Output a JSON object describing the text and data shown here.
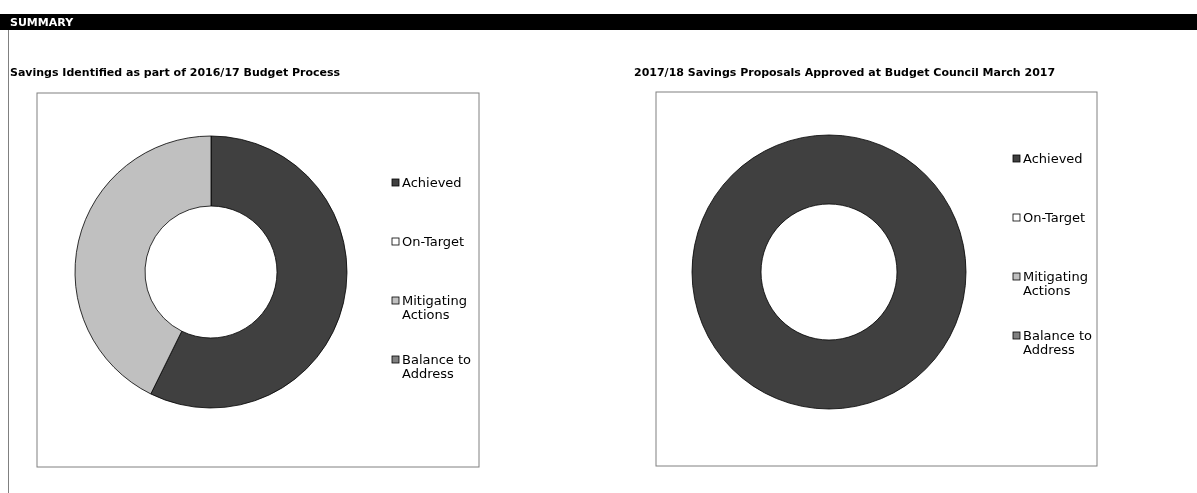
{
  "chart_data": [
    {
      "type": "donut",
      "title": "Savings Identified as part of 2016/17 Budget Process",
      "annotations": [
        "SUMMARY"
      ],
      "categories": [
        "Achieved",
        "On-Target",
        "Mitigating Actions",
        "Balance to Address"
      ],
      "values": [
        57.3,
        0,
        42.7,
        0
      ],
      "colors": [
        "#404040",
        "#ffffff",
        "#c0c0c0",
        "#808080"
      ],
      "legend": "right"
    },
    {
      "type": "donut",
      "title": "2017/18 Savings Proposals Approved at Budget Council March 2017",
      "categories": [
        "Achieved",
        "On-Target",
        "Mitigating Actions",
        "Balance to Address"
      ],
      "values": [
        100,
        0,
        0,
        0
      ],
      "colors": [
        "#404040",
        "#ffffff",
        "#c0c0c0",
        "#808080"
      ],
      "legend": "right"
    }
  ]
}
